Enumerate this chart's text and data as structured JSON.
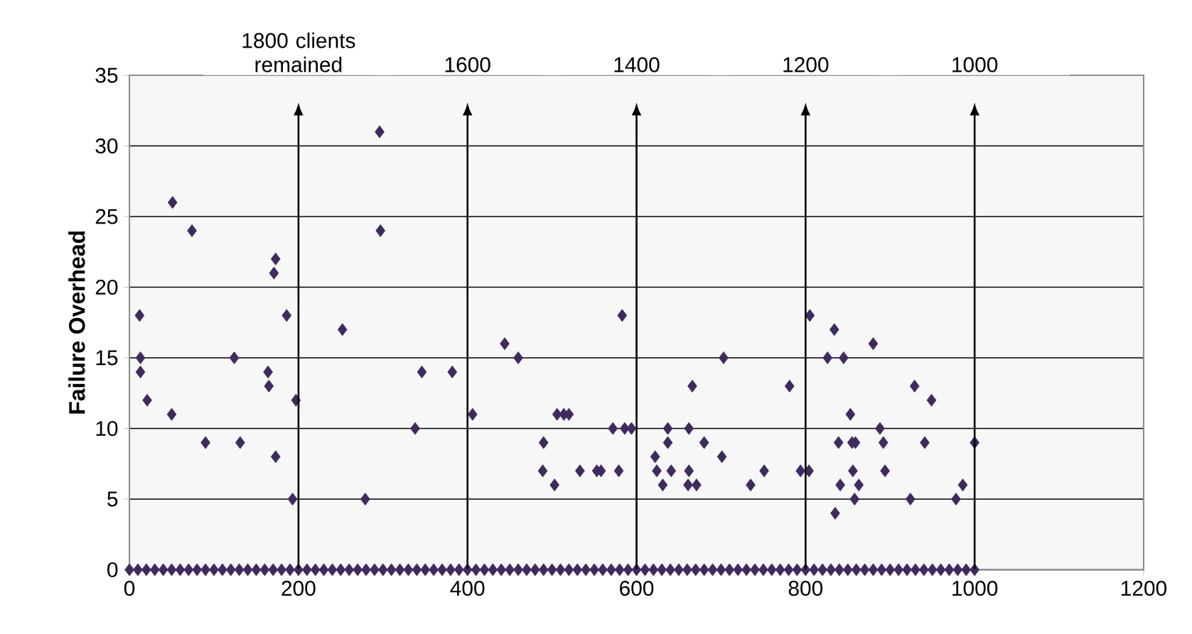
{
  "chart_data": {
    "type": "scatter",
    "ylabel": "Failure Overhead",
    "x": [
      12,
      13,
      13,
      21,
      50,
      51,
      74,
      90,
      124,
      131,
      164,
      165,
      173,
      171,
      173,
      186,
      193,
      197,
      252,
      279,
      296,
      297,
      338,
      346,
      382,
      406,
      444,
      460,
      490,
      489,
      503,
      506,
      514,
      520,
      533,
      553,
      558,
      572,
      579,
      583,
      586,
      594,
      622,
      624,
      631,
      637,
      637,
      641,
      662,
      662,
      661,
      666,
      671,
      680,
      701,
      703,
      735,
      751,
      781,
      794,
      804,
      805,
      826,
      834,
      835,
      841,
      839,
      845,
      853,
      855,
      856,
      858,
      859,
      863,
      880,
      888,
      892,
      894,
      924,
      929,
      941,
      949,
      978,
      986,
      1000,
      0,
      10,
      20,
      30,
      40,
      50,
      60,
      70,
      80,
      90,
      100,
      110,
      120,
      130,
      140,
      150,
      160,
      170,
      180,
      190,
      200,
      210,
      220,
      230,
      240,
      250,
      260,
      270,
      280,
      290,
      300,
      310,
      320,
      330,
      340,
      350,
      360,
      370,
      380,
      390,
      400,
      410,
      420,
      430,
      440,
      450,
      460,
      470,
      480,
      490,
      500,
      510,
      520,
      530,
      540,
      550,
      560,
      570,
      580,
      590,
      600,
      610,
      620,
      630,
      640,
      650,
      660,
      670,
      680,
      690,
      700,
      710,
      720,
      730,
      740,
      750,
      760,
      770,
      780,
      790,
      800,
      810,
      820,
      830,
      840,
      850,
      860,
      870,
      880,
      890,
      900,
      910,
      920,
      930,
      940,
      950,
      960,
      970,
      980,
      990,
      1000
    ],
    "values": [
      18,
      15,
      14,
      12,
      11,
      26,
      24,
      9,
      15,
      9,
      14,
      13,
      22,
      21,
      8,
      18,
      5,
      12,
      17,
      5,
      31,
      24,
      10,
      14,
      14,
      11,
      16,
      15,
      9,
      7,
      6,
      11,
      11,
      11,
      7,
      7,
      7,
      10,
      7,
      18,
      10,
      10,
      8,
      7,
      6,
      9,
      10,
      7,
      10,
      7,
      6,
      13,
      6,
      9,
      8,
      15,
      6,
      7,
      13,
      7,
      7,
      18,
      15,
      17,
      4,
      6,
      9,
      15,
      11,
      9,
      7,
      5,
      9,
      6,
      16,
      10,
      9,
      7,
      5,
      13,
      9,
      12,
      5,
      6,
      9,
      0,
      0,
      0,
      0,
      0,
      0,
      0,
      0,
      0,
      0,
      0,
      0,
      0,
      0,
      0,
      0,
      0,
      0,
      0,
      0,
      0,
      0,
      0,
      0,
      0,
      0,
      0,
      0,
      0,
      0,
      0,
      0,
      0,
      0,
      0,
      0,
      0,
      0,
      0,
      0,
      0,
      0,
      0,
      0,
      0,
      0,
      0,
      0,
      0,
      0,
      0,
      0,
      0,
      0,
      0,
      0,
      0,
      0,
      0,
      0,
      0,
      0,
      0,
      0,
      0,
      0,
      0,
      0,
      0,
      0,
      0,
      0,
      0,
      0,
      0,
      0,
      0,
      0,
      0,
      0,
      0,
      0,
      0,
      0,
      0,
      0,
      0,
      0,
      0,
      0,
      0,
      0,
      0,
      0,
      0,
      0,
      0,
      0,
      0,
      0,
      0
    ],
    "color": "#3f2a60",
    "marker": "diamond",
    "xlim": [
      0,
      1200
    ],
    "xticks": [
      0,
      200,
      400,
      600,
      800,
      1000,
      1200
    ],
    "ylim": [
      0,
      35
    ],
    "yticks": [
      0,
      5,
      10,
      15,
      20,
      25,
      30,
      35
    ],
    "grid": "y",
    "ref_lines": [
      {
        "axis": "x",
        "value": 200,
        "color": "#000000"
      },
      {
        "axis": "x",
        "value": 400,
        "color": "#000000"
      },
      {
        "axis": "x",
        "value": 600,
        "color": "#000000"
      },
      {
        "axis": "x",
        "value": 800,
        "color": "#000000"
      },
      {
        "axis": "x",
        "value": 1000,
        "color": "#000000"
      }
    ],
    "annotations": [
      "1800 clients remained",
      "1600",
      "1400",
      "1200",
      "1000"
    ]
  }
}
